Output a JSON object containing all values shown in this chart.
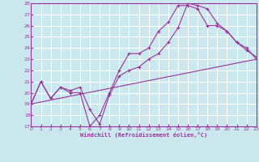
{
  "bg_color": "#cce8ef",
  "grid_color": "#ffffff",
  "line_color": "#993399",
  "marker": "+",
  "xlabel": "Windchill (Refroidissement éolien,°C)",
  "ylim": [
    17,
    28
  ],
  "xlim": [
    0,
    23
  ],
  "yticks": [
    17,
    18,
    19,
    20,
    21,
    22,
    23,
    24,
    25,
    26,
    27,
    28
  ],
  "xticks": [
    0,
    1,
    2,
    3,
    4,
    5,
    6,
    7,
    8,
    9,
    10,
    11,
    12,
    13,
    14,
    15,
    16,
    17,
    18,
    19,
    20,
    21,
    22,
    23
  ],
  "line1_x": [
    0,
    1,
    2,
    3,
    4,
    5,
    6,
    7,
    8,
    9,
    10,
    11,
    12,
    13,
    14,
    15,
    16,
    17,
    18,
    19,
    20,
    21,
    22,
    23
  ],
  "line1_y": [
    19.0,
    21.0,
    19.5,
    20.5,
    20.0,
    20.0,
    17.0,
    18.0,
    20.0,
    22.0,
    23.5,
    23.5,
    24.0,
    25.5,
    26.3,
    27.8,
    27.8,
    27.5,
    26.0,
    26.0,
    25.5,
    24.5,
    24.0,
    23.0
  ],
  "line2_x": [
    0,
    23
  ],
  "line2_y": [
    19.0,
    23.0
  ],
  "line3_x": [
    0,
    1,
    2,
    3,
    4,
    5,
    6,
    7,
    8,
    9,
    10,
    11,
    12,
    13,
    14,
    15,
    16,
    17,
    18,
    19,
    20,
    21,
    22,
    23
  ],
  "line3_y": [
    19.0,
    21.0,
    19.5,
    20.5,
    20.2,
    20.5,
    18.5,
    17.2,
    19.8,
    21.5,
    22.0,
    22.3,
    23.0,
    23.5,
    24.5,
    25.8,
    28.0,
    27.8,
    27.5,
    26.2,
    25.5,
    24.5,
    23.8,
    23.2
  ]
}
